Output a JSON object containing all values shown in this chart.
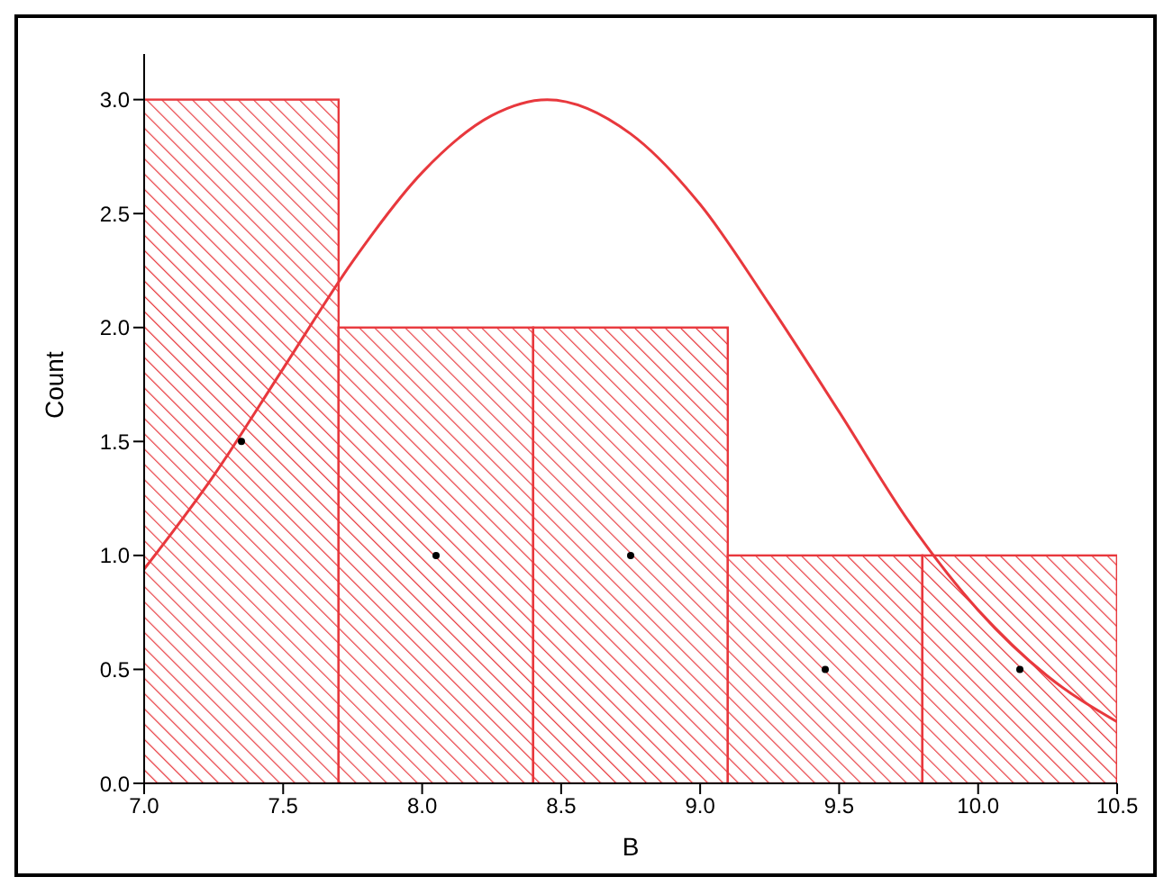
{
  "chart_data": {
    "type": "histogram",
    "xlabel": "B",
    "ylabel": "Count",
    "bins": [
      7.0,
      7.7,
      8.4,
      9.1,
      9.8,
      10.5
    ],
    "values": [
      3,
      2,
      2,
      1,
      1
    ],
    "color": "#e8383d",
    "series": [
      {
        "type": "line",
        "color": "#e8383d",
        "marker": "none",
        "x": [
          7.0,
          7.25,
          7.5,
          7.75,
          8.0,
          8.25,
          8.45,
          8.75,
          9.0,
          9.25,
          9.5,
          9.75,
          10.0,
          10.25,
          10.5
        ],
        "values": [
          0.94,
          1.35,
          1.82,
          2.29,
          2.68,
          2.93,
          3.0,
          2.85,
          2.54,
          2.1,
          1.63,
          1.15,
          0.76,
          0.47,
          0.27
        ]
      },
      {
        "type": "scatter",
        "color": "#000000",
        "marker": "circle",
        "x": [
          7.35,
          8.05,
          8.75,
          9.45,
          10.15
        ],
        "values": [
          1.5,
          1,
          1,
          0.5,
          0.5
        ]
      }
    ],
    "xlim": [
      7.0,
      10.5
    ],
    "ylim": [
      0,
      3.2
    ],
    "xticks": [
      {
        "value": 7,
        "label": "7.0"
      },
      {
        "value": 7.5,
        "label": "7.5"
      },
      {
        "value": 8,
        "label": "8.0"
      },
      {
        "value": 8.5,
        "label": "8.5"
      },
      {
        "value": 9,
        "label": "9.0"
      },
      {
        "value": 9.5,
        "label": "9.5"
      },
      {
        "value": 10,
        "label": "10.0"
      },
      {
        "value": 10.5,
        "label": "10.5"
      }
    ],
    "yticks": [
      {
        "value": 0,
        "label": "0.0"
      },
      {
        "value": 0.5,
        "label": "0.5"
      },
      {
        "value": 1,
        "label": "1.0"
      },
      {
        "value": 1.5,
        "label": "1.5"
      },
      {
        "value": 2,
        "label": "2.0"
      },
      {
        "value": 2.5,
        "label": "2.5"
      },
      {
        "value": 3,
        "label": "3.0"
      }
    ],
    "line_style": "solid"
  }
}
